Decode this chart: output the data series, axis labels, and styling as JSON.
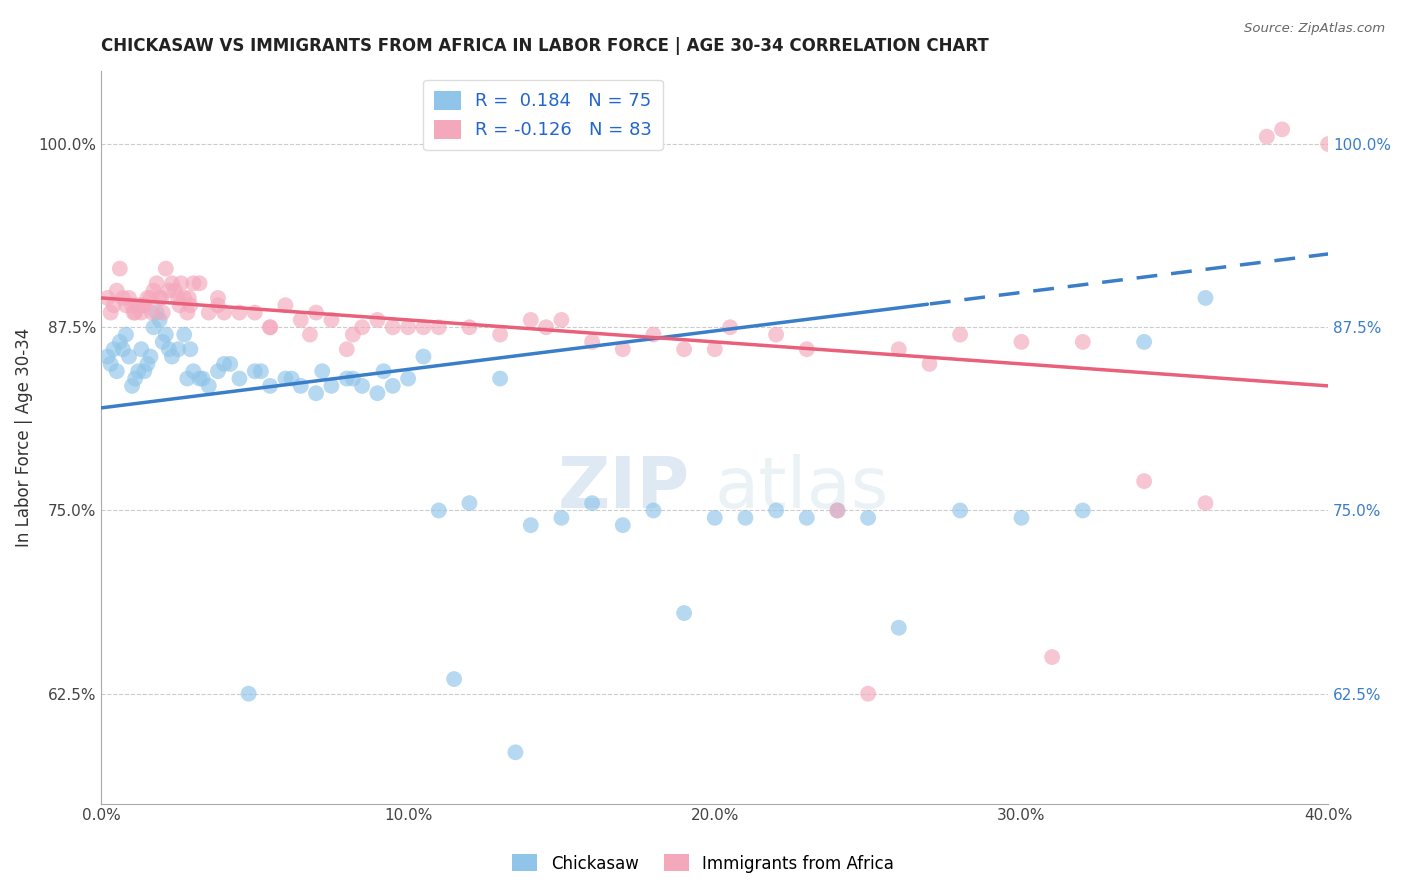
{
  "title": "CHICKASAW VS IMMIGRANTS FROM AFRICA IN LABOR FORCE | AGE 30-34 CORRELATION CHART",
  "source": "Source: ZipAtlas.com",
  "ylabel_left": "In Labor Force | Age 30-34",
  "x_tick_labels": [
    "0.0%",
    "10.0%",
    "20.0%",
    "30.0%",
    "40.0%"
  ],
  "x_tick_values": [
    0.0,
    10.0,
    20.0,
    30.0,
    40.0
  ],
  "y_tick_labels": [
    "62.5%",
    "75.0%",
    "87.5%",
    "100.0%"
  ],
  "y_tick_values": [
    62.5,
    75.0,
    87.5,
    100.0
  ],
  "xlim": [
    0.0,
    40.0
  ],
  "ylim": [
    55.0,
    105.0
  ],
  "legend_label1": "Chickasaw",
  "legend_label2": "Immigrants from Africa",
  "r1": 0.184,
  "n1": 75,
  "r2": -0.126,
  "n2": 83,
  "blue_color": "#90c4e8",
  "pink_color": "#f4a8bc",
  "blue_line_color": "#3a7dc9",
  "pink_line_color": "#e8607a",
  "watermark_zip": "ZIP",
  "watermark_atlas": "atlas",
  "blue_line_x0": 0.0,
  "blue_line_y0": 82.0,
  "blue_line_x1": 40.0,
  "blue_line_y1": 92.5,
  "blue_dash_start": 27.0,
  "pink_line_x0": 0.0,
  "pink_line_y0": 89.5,
  "pink_line_x1": 40.0,
  "pink_line_y1": 83.5,
  "blue_scatter_x": [
    0.2,
    0.3,
    0.4,
    0.5,
    0.6,
    0.7,
    0.8,
    0.9,
    1.0,
    1.1,
    1.2,
    1.3,
    1.4,
    1.5,
    1.6,
    1.7,
    1.8,
    1.9,
    2.0,
    2.1,
    2.2,
    2.3,
    2.5,
    2.7,
    2.9,
    3.0,
    3.2,
    3.5,
    3.8,
    4.0,
    4.5,
    5.0,
    5.5,
    6.0,
    6.5,
    7.0,
    7.5,
    8.0,
    8.5,
    9.0,
    9.5,
    10.0,
    11.0,
    12.0,
    13.0,
    14.0,
    15.0,
    16.0,
    17.0,
    18.0,
    19.0,
    20.0,
    21.0,
    22.0,
    23.0,
    24.0,
    25.0,
    26.0,
    28.0,
    30.0,
    32.0,
    34.0,
    36.0,
    2.8,
    3.3,
    4.2,
    5.2,
    6.2,
    7.2,
    8.2,
    9.2,
    10.5,
    4.8,
    11.5,
    13.5
  ],
  "blue_scatter_y": [
    85.5,
    85.0,
    86.0,
    84.5,
    86.5,
    86.0,
    87.0,
    85.5,
    83.5,
    84.0,
    84.5,
    86.0,
    84.5,
    85.0,
    85.5,
    87.5,
    88.5,
    88.0,
    86.5,
    87.0,
    86.0,
    85.5,
    86.0,
    87.0,
    86.0,
    84.5,
    84.0,
    83.5,
    84.5,
    85.0,
    84.0,
    84.5,
    83.5,
    84.0,
    83.5,
    83.0,
    83.5,
    84.0,
    83.5,
    83.0,
    83.5,
    84.0,
    75.0,
    75.5,
    84.0,
    74.0,
    74.5,
    75.5,
    74.0,
    75.0,
    68.0,
    74.5,
    74.5,
    75.0,
    74.5,
    75.0,
    74.5,
    67.0,
    75.0,
    74.5,
    75.0,
    86.5,
    89.5,
    84.0,
    84.0,
    85.0,
    84.5,
    84.0,
    84.5,
    84.0,
    84.5,
    85.5,
    62.5,
    63.5,
    58.5
  ],
  "pink_scatter_x": [
    0.2,
    0.3,
    0.4,
    0.5,
    0.6,
    0.7,
    0.8,
    0.9,
    1.0,
    1.1,
    1.2,
    1.3,
    1.4,
    1.5,
    1.6,
    1.7,
    1.8,
    1.9,
    2.0,
    2.1,
    2.2,
    2.3,
    2.4,
    2.5,
    2.6,
    2.7,
    2.8,
    2.9,
    3.0,
    3.2,
    3.5,
    3.8,
    4.0,
    4.5,
    5.0,
    5.5,
    6.0,
    6.5,
    7.0,
    7.5,
    8.0,
    8.5,
    9.0,
    9.5,
    10.0,
    10.5,
    11.0,
    12.0,
    13.0,
    14.0,
    15.0,
    16.0,
    17.0,
    18.0,
    19.0,
    20.0,
    22.0,
    24.0,
    25.0,
    26.0,
    28.0,
    30.0,
    32.0,
    34.0,
    36.0,
    1.05,
    1.35,
    1.65,
    1.95,
    2.55,
    2.85,
    3.8,
    5.5,
    6.8,
    8.2,
    14.5,
    20.5,
    23.0,
    27.0,
    31.0,
    38.0,
    38.5,
    40.0
  ],
  "pink_scatter_y": [
    89.5,
    88.5,
    89.0,
    90.0,
    91.5,
    89.5,
    89.0,
    89.5,
    89.0,
    88.5,
    89.0,
    88.5,
    89.0,
    89.5,
    89.5,
    90.0,
    90.5,
    89.5,
    88.5,
    91.5,
    90.0,
    90.5,
    90.0,
    89.5,
    90.5,
    89.5,
    88.5,
    89.0,
    90.5,
    90.5,
    88.5,
    89.5,
    88.5,
    88.5,
    88.5,
    87.5,
    89.0,
    88.0,
    88.5,
    88.0,
    86.0,
    87.5,
    88.0,
    87.5,
    87.5,
    87.5,
    87.5,
    87.5,
    87.0,
    88.0,
    88.0,
    86.5,
    86.0,
    87.0,
    86.0,
    86.0,
    87.0,
    75.0,
    62.5,
    86.0,
    87.0,
    86.5,
    86.5,
    77.0,
    75.5,
    88.5,
    89.0,
    88.5,
    89.5,
    89.0,
    89.5,
    89.0,
    87.5,
    87.0,
    87.0,
    87.5,
    87.5,
    86.0,
    85.0,
    65.0,
    100.5,
    101.0,
    100.0
  ]
}
